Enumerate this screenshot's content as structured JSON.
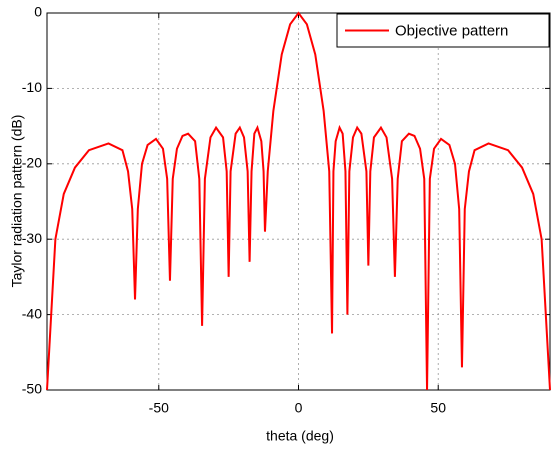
{
  "chart_data": {
    "type": "line",
    "xlabel": "theta (deg)",
    "ylabel": "Taylor radiation pattern (dB)",
    "x": [
      -90,
      -87,
      -84,
      -80,
      -75,
      -68,
      -63,
      -61,
      -59.5,
      -58.5,
      -57.5,
      -56,
      -54,
      -51,
      -48.5,
      -47,
      -46,
      -45,
      -43.5,
      -41.5,
      -39.5,
      -37,
      -35.5,
      -34.5,
      -33.5,
      -31.5,
      -29.5,
      -27,
      -25.7,
      -25,
      -24.3,
      -22.5,
      -21,
      -19.5,
      -18.2,
      -17.5,
      -16.8,
      -15.8,
      -14.7,
      -13.3,
      -12.5,
      -12,
      -11,
      -9,
      -6,
      -3,
      0,
      3,
      6,
      9,
      11,
      12,
      12.5,
      13.3,
      14.7,
      15.8,
      16.8,
      17.5,
      18.2,
      19.5,
      21,
      22.5,
      24.3,
      25,
      25.7,
      27,
      29.5,
      31.5,
      33.5,
      34.5,
      35.5,
      37,
      39.5,
      41.5,
      43.5,
      45,
      46,
      47,
      48.5,
      51,
      54,
      56,
      57.5,
      58.5,
      59.5,
      61,
      63,
      68,
      75,
      80,
      84,
      87,
      90
    ],
    "series": [
      {
        "name": "Objective pattern",
        "color": "#ff0000",
        "values": [
          -50,
          -30,
          -24,
          -20.5,
          -18.2,
          -17.3,
          -18.2,
          -21,
          -26,
          -38,
          -26,
          -20,
          -17.5,
          -16.7,
          -18,
          -22,
          -35.5,
          -22,
          -18,
          -16.3,
          -16,
          -17,
          -22,
          -41.5,
          -22,
          -16.5,
          -15.2,
          -16.5,
          -21,
          -35,
          -21,
          -16,
          -15.2,
          -16.5,
          -21,
          -33,
          -21,
          -16,
          -15.2,
          -17,
          -21,
          -29,
          -21,
          -13,
          -5.5,
          -1.5,
          0,
          -1.5,
          -5.5,
          -13,
          -21,
          -42.5,
          -21,
          -17,
          -15.2,
          -16,
          -21,
          -40,
          -21,
          -16.5,
          -15.2,
          -16,
          -21,
          -33.5,
          -21,
          -16.5,
          -15.2,
          -16.5,
          -22,
          -35,
          -22,
          -17,
          -16,
          -16.3,
          -18,
          -22,
          -50,
          -22,
          -18,
          -16.7,
          -17.5,
          -20,
          -26,
          -47,
          -26,
          -21,
          -18.2,
          -17.3,
          -18.2,
          -20.5,
          -24,
          -30,
          -50
        ]
      }
    ],
    "xlim": [
      -90,
      90
    ],
    "ylim": [
      -50,
      0
    ],
    "xticks": [
      -50,
      0,
      50
    ],
    "yticks": [
      -50,
      -40,
      -30,
      -20,
      -10,
      0
    ],
    "grid": true,
    "legend": "upper right"
  }
}
